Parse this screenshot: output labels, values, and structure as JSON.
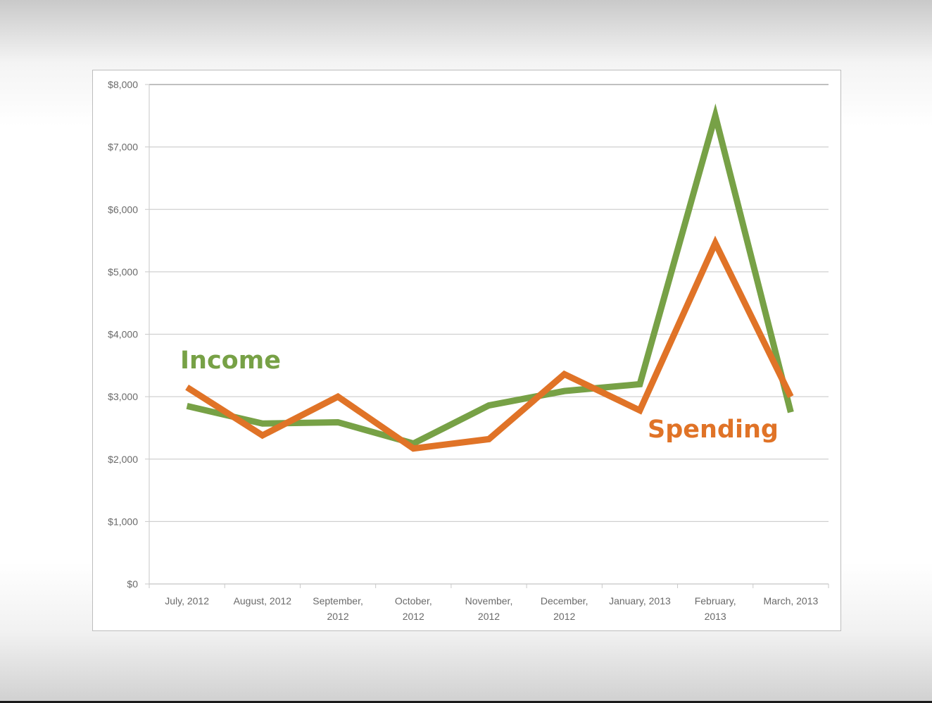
{
  "chart_data": {
    "type": "line",
    "categories": [
      [
        "July, 2012"
      ],
      [
        "August, 2012"
      ],
      [
        "September,",
        "2012"
      ],
      [
        "October,",
        "2012"
      ],
      [
        "November,",
        "2012"
      ],
      [
        "December,",
        "2012"
      ],
      [
        "January, 2013"
      ],
      [
        "February,",
        "2013"
      ],
      [
        "March, 2013"
      ]
    ],
    "y_ticks": [
      "$0",
      "$1,000",
      "$2,000",
      "$3,000",
      "$4,000",
      "$5,000",
      "$6,000",
      "$7,000",
      "$8,000"
    ],
    "ylim": [
      0,
      8000
    ],
    "grid": true,
    "series": [
      {
        "name": "Income",
        "color": "#77a146",
        "values": [
          2850,
          2570,
          2590,
          2250,
          2860,
          3090,
          3200,
          7500,
          2750
        ]
      },
      {
        "name": "Spending",
        "color": "#e07327",
        "values": [
          3150,
          2380,
          3000,
          2170,
          2320,
          3360,
          2780,
          5460,
          3000
        ]
      }
    ]
  }
}
